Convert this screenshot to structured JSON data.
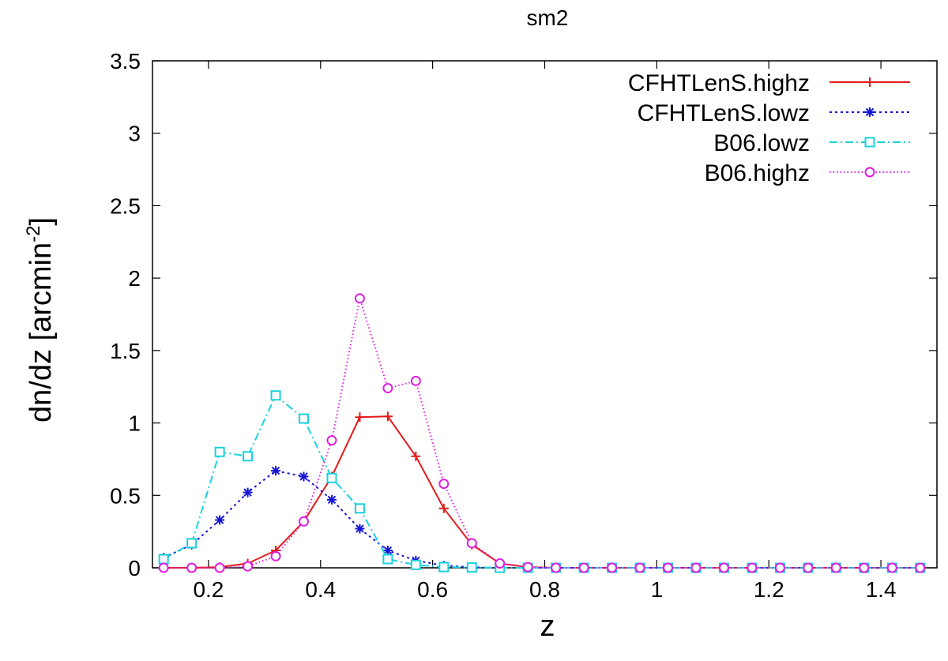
{
  "chart_data": {
    "type": "line",
    "title": "sm2",
    "xlabel": "z",
    "ylabel": "dn/dz [arcmin",
    "ylabel_sup": "-2",
    "ylabel_tail": "]",
    "xlim": [
      0.1,
      1.5
    ],
    "ylim": [
      0,
      3.5
    ],
    "xticks": [
      0.2,
      0.4,
      0.6,
      0.8,
      1,
      1.2,
      1.4
    ],
    "xtick_labels": [
      "0.2",
      "0.4",
      "0.6",
      "0.8",
      "1",
      "1.2",
      "1.4"
    ],
    "yticks": [
      0,
      0.5,
      1,
      1.5,
      2,
      2.5,
      3,
      3.5
    ],
    "ytick_labels": [
      "0",
      "0.5",
      "1",
      "1.5",
      "2",
      "2.5",
      "3",
      "3.5"
    ],
    "legend_position": "top-right",
    "x": [
      0.12,
      0.17,
      0.22,
      0.27,
      0.32,
      0.37,
      0.42,
      0.47,
      0.52,
      0.57,
      0.62,
      0.67,
      0.72,
      0.77,
      0.82,
      0.87,
      0.92,
      0.97,
      1.02,
      1.07,
      1.12,
      1.17,
      1.22,
      1.27,
      1.32,
      1.37,
      1.42,
      1.47
    ],
    "series": [
      {
        "name": "CFHTLenS.highz",
        "color": "#e41a1a",
        "marker": "plus",
        "dash": "",
        "values": [
          0,
          0,
          0.005,
          0.03,
          0.12,
          0.32,
          0.63,
          1.04,
          1.045,
          0.77,
          0.41,
          0.16,
          0.03,
          0.005,
          0,
          0,
          0,
          0,
          0,
          0,
          0,
          0,
          0,
          0,
          0,
          0,
          0,
          0
        ]
      },
      {
        "name": "CFHTLenS.lowz",
        "color": "#1515d6",
        "marker": "star",
        "dash": "3,4",
        "values": [
          0.07,
          0.16,
          0.33,
          0.52,
          0.67,
          0.63,
          0.47,
          0.27,
          0.12,
          0.05,
          0.015,
          0.004,
          0,
          0,
          0,
          0,
          0,
          0,
          0,
          0,
          0,
          0,
          0,
          0,
          0,
          0,
          0,
          0
        ]
      },
      {
        "name": "B06.lowz",
        "color": "#19d1dc",
        "marker": "square",
        "dash": "10,4,2,4",
        "values": [
          0.06,
          0.17,
          0.8,
          0.77,
          1.19,
          1.03,
          0.62,
          0.41,
          0.06,
          0.02,
          0.005,
          0.002,
          0,
          0,
          0,
          0,
          0,
          0,
          0,
          0,
          0,
          0,
          0,
          0,
          0,
          0,
          0,
          0
        ]
      },
      {
        "name": "B06.highz",
        "color": "#e01ee0",
        "marker": "circle",
        "dash": "1.5,3",
        "values": [
          0,
          0,
          0,
          0.01,
          0.08,
          0.32,
          0.88,
          1.86,
          1.24,
          1.29,
          0.58,
          0.17,
          0.03,
          0.005,
          0,
          0,
          0,
          0,
          0,
          0,
          0,
          0,
          0,
          0,
          0,
          0,
          0,
          0
        ]
      }
    ]
  }
}
